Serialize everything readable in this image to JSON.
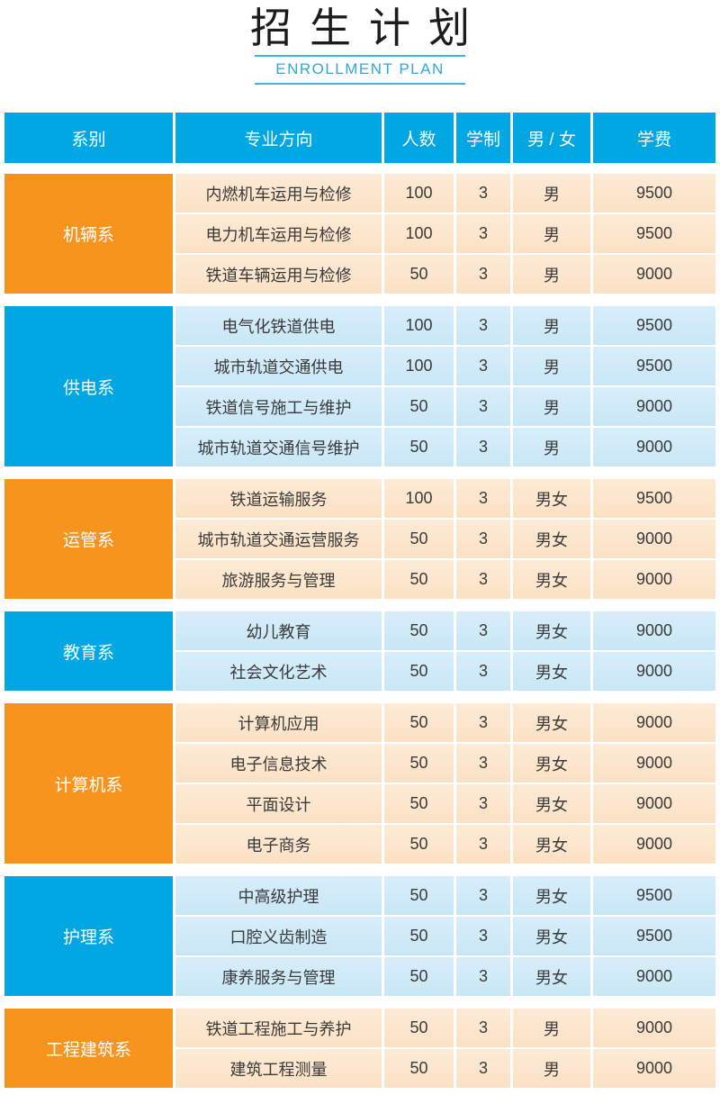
{
  "title": {
    "zh": "招生计划",
    "en": "ENROLLMENT PLAN"
  },
  "colors": {
    "accent_orange": "#f7941e",
    "accent_blue": "#00a7e2",
    "row_orange_tint": "#fbe4c9",
    "row_blue_tint": "#cde9f7",
    "header_text": "#ffffff",
    "body_text": "#3a3a3a",
    "title_en_blue": "#2ea7e0",
    "title_zh_black": "#1c1c1c"
  },
  "table": {
    "headers": [
      "系别",
      "专业方向",
      "人数",
      "学制",
      "男 / 女",
      "学费"
    ],
    "groups": [
      {
        "dept": "机辆系",
        "theme": "orange",
        "rows": [
          [
            "内燃机车运用与检修",
            "100",
            "3",
            "男",
            "9500"
          ],
          [
            "电力机车运用与检修",
            "100",
            "3",
            "男",
            "9500"
          ],
          [
            "铁道车辆运用与检修",
            "50",
            "3",
            "男",
            "9000"
          ]
        ]
      },
      {
        "dept": "供电系",
        "theme": "blue",
        "rows": [
          [
            "电气化铁道供电",
            "100",
            "3",
            "男",
            "9500"
          ],
          [
            "城市轨道交通供电",
            "100",
            "3",
            "男",
            "9500"
          ],
          [
            "铁道信号施工与维护",
            "50",
            "3",
            "男",
            "9000"
          ],
          [
            "城市轨道交通信号维护",
            "50",
            "3",
            "男",
            "9000"
          ]
        ]
      },
      {
        "dept": "运管系",
        "theme": "orange",
        "rows": [
          [
            "铁道运输服务",
            "100",
            "3",
            "男女",
            "9500"
          ],
          [
            "城市轨道交通运营服务",
            "50",
            "3",
            "男女",
            "9000"
          ],
          [
            "旅游服务与管理",
            "50",
            "3",
            "男女",
            "9000"
          ]
        ]
      },
      {
        "dept": "教育系",
        "theme": "blue",
        "rows": [
          [
            "幼儿教育",
            "50",
            "3",
            "男女",
            "9000"
          ],
          [
            "社会文化艺术",
            "50",
            "3",
            "男女",
            "9000"
          ]
        ]
      },
      {
        "dept": "计算机系",
        "theme": "orange",
        "rows": [
          [
            "计算机应用",
            "50",
            "3",
            "男女",
            "9000"
          ],
          [
            "电子信息技术",
            "50",
            "3",
            "男女",
            "9000"
          ],
          [
            "平面设计",
            "50",
            "3",
            "男女",
            "9000"
          ],
          [
            "电子商务",
            "50",
            "3",
            "男女",
            "9000"
          ]
        ]
      },
      {
        "dept": "护理系",
        "theme": "blue",
        "rows": [
          [
            "中高级护理",
            "50",
            "3",
            "男女",
            "9500"
          ],
          [
            "口腔义齿制造",
            "50",
            "3",
            "男女",
            "9500"
          ],
          [
            "康养服务与管理",
            "50",
            "3",
            "男女",
            "9000"
          ]
        ]
      },
      {
        "dept": "工程建筑系",
        "theme": "orange",
        "rows": [
          [
            "铁道工程施工与养护",
            "50",
            "3",
            "男",
            "9000"
          ],
          [
            "建筑工程测量",
            "50",
            "3",
            "男",
            "9000"
          ]
        ]
      }
    ]
  }
}
